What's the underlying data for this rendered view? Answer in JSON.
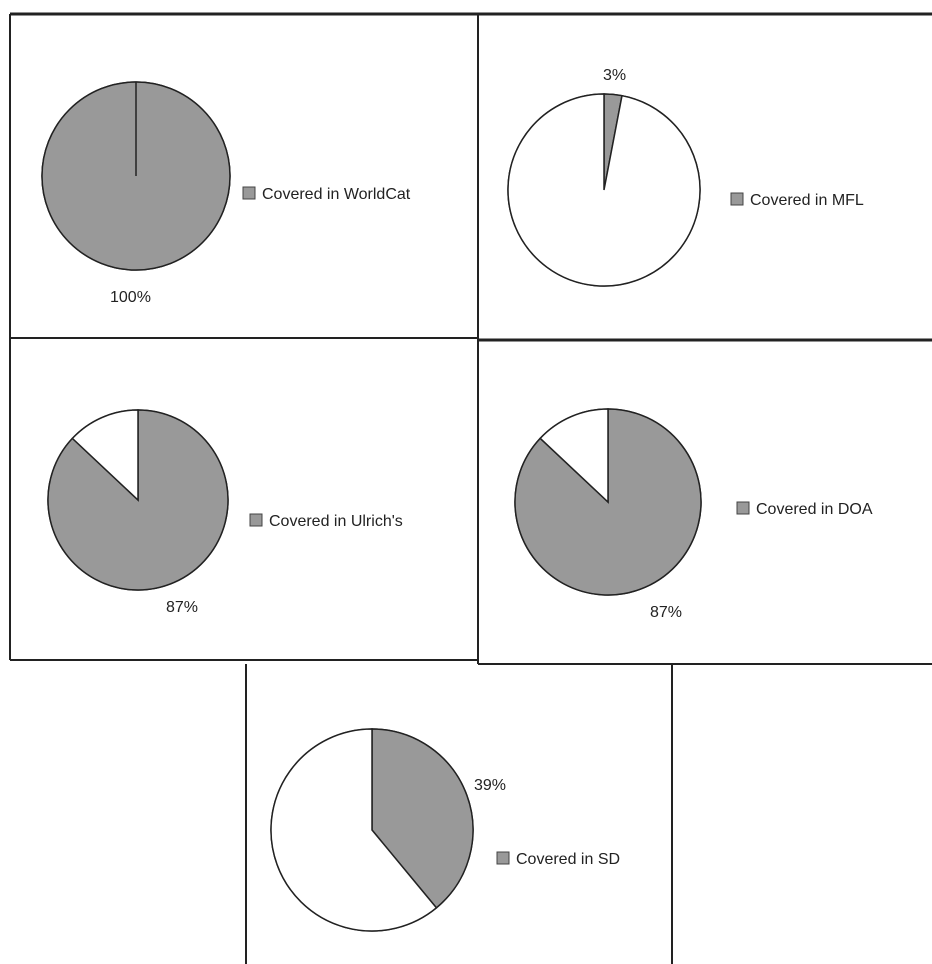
{
  "chart_data": [
    {
      "type": "pie",
      "categories": [
        "Covered in WorldCat",
        ""
      ],
      "values": [
        100,
        0
      ],
      "slice_colors": [
        "#999999",
        "#ffffff"
      ],
      "data_label": "100%",
      "legend": {
        "label": "Covered in WorldCat",
        "position": "right"
      }
    },
    {
      "type": "pie",
      "categories": [
        "Covered in MFL",
        ""
      ],
      "values": [
        3,
        97
      ],
      "slice_colors": [
        "#999999",
        "#ffffff"
      ],
      "data_label": "3%",
      "legend": {
        "label": "Covered in MFL",
        "position": "right"
      }
    },
    {
      "type": "pie",
      "categories": [
        "Covered in Ulrich's",
        ""
      ],
      "values": [
        87,
        13
      ],
      "slice_colors": [
        "#999999",
        "#ffffff"
      ],
      "data_label": "87%",
      "legend": {
        "label": "Covered in Ulrich's",
        "position": "right"
      }
    },
    {
      "type": "pie",
      "categories": [
        "Covered in DOA",
        ""
      ],
      "values": [
        87,
        13
      ],
      "slice_colors": [
        "#999999",
        "#ffffff"
      ],
      "data_label": "87%",
      "legend": {
        "label": "Covered in DOA",
        "position": "right"
      }
    },
    {
      "type": "pie",
      "categories": [
        "Covered in SD",
        ""
      ],
      "values": [
        39,
        61
      ],
      "slice_colors": [
        "#999999",
        "#ffffff"
      ],
      "data_label": "39%",
      "legend": {
        "label": "Covered in SD",
        "position": "right"
      }
    }
  ],
  "colors": {
    "covered": "#999999",
    "uncovered": "#ffffff",
    "border": "#222222"
  }
}
